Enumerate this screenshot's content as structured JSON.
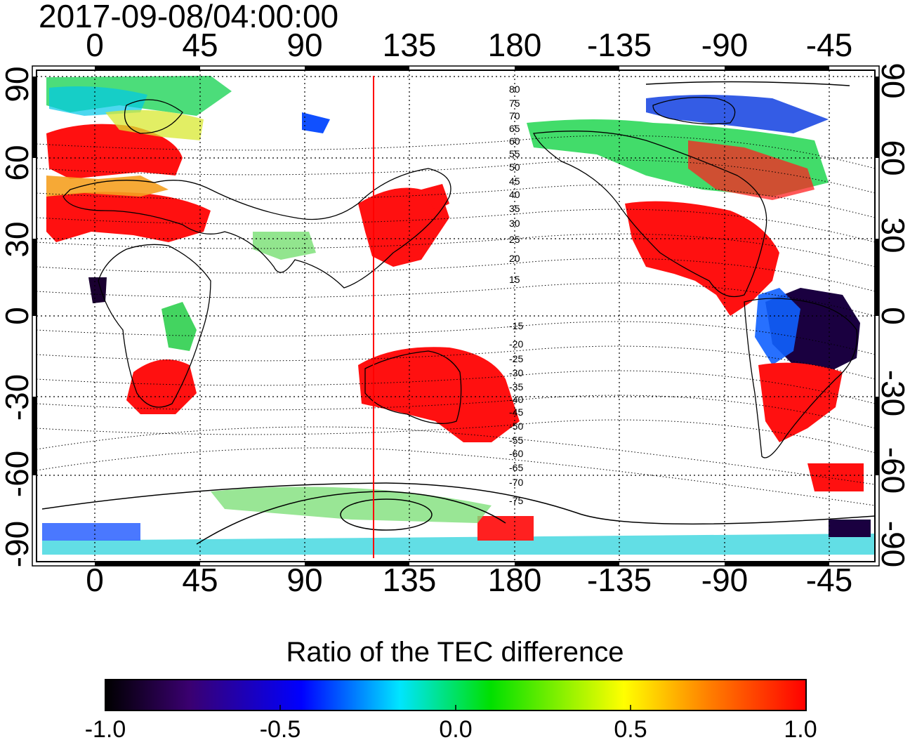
{
  "title": "2017-09-08/04:00:00",
  "colorbar": {
    "title": "Ratio of the TEC difference",
    "labels": [
      "-1.0",
      "-0.5",
      "0.0",
      "0.5",
      "1.0"
    ],
    "range": [
      -1.0,
      1.0
    ],
    "stops": [
      "#000000",
      "#3a0070",
      "#0000ff",
      "#00e5ff",
      "#00e000",
      "#ffff00",
      "#ff8000",
      "#ff0000"
    ]
  },
  "lon_ticks": [
    "0",
    "45",
    "90",
    "135",
    "180",
    "-135",
    "-90",
    "-45"
  ],
  "lat_ticks": [
    "90",
    "60",
    "30",
    "0",
    "-30",
    "-60",
    "-90"
  ],
  "contour_labels": [
    "80",
    "75",
    "70",
    "65",
    "60",
    "55",
    "50",
    "45",
    "40",
    "35",
    "30",
    "25",
    "20",
    "15",
    "-15",
    "-20",
    "-25",
    "-30",
    "-35",
    "-40",
    "-45",
    "-50",
    "-55",
    "-60",
    "-65",
    "-70",
    "-75"
  ],
  "colors": {
    "terminator_line": "#ff0000",
    "frame": "#000000"
  }
}
